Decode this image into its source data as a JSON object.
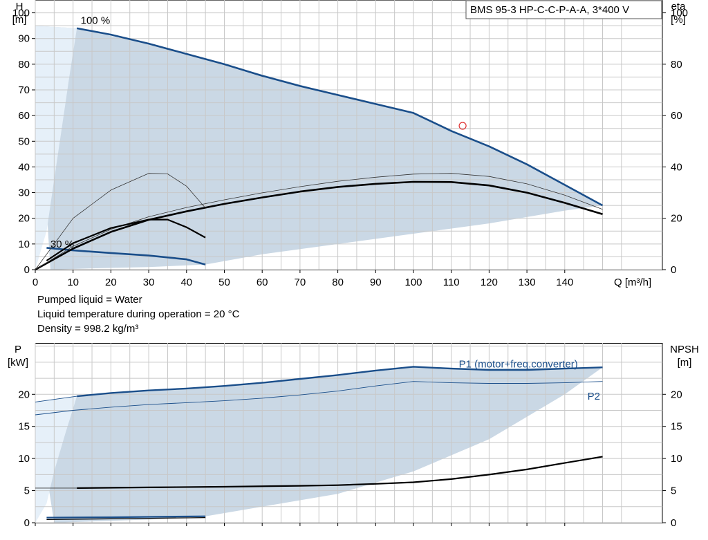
{
  "header": {
    "pump_model": "BMS 95-3 HP-C-C-P-A-A, 3*400 V"
  },
  "info": {
    "line1": "Pumped liquid = Water",
    "line2": "Liquid temperature during operation = 20 °C",
    "line3": "Density = 998.2 kg/m³"
  },
  "colors": {
    "blue": "#1a4e8a",
    "dark": "#000000",
    "area": "#cad8e5",
    "area_light": "#e6f0f9",
    "grid": "#c8c8c8",
    "marker": "#e03030"
  },
  "chart_data": [
    {
      "type": "line",
      "xlabel": "Q [m³/h]",
      "ylabel": "H\n[m]",
      "y2label": "eta\n[%]",
      "xlim": [
        0,
        150
      ],
      "ylim": [
        0,
        105
      ],
      "y2lim": [
        0,
        105
      ],
      "x_ticks": [
        0,
        10,
        20,
        30,
        40,
        50,
        60,
        70,
        80,
        90,
        100,
        110,
        120,
        130,
        140
      ],
      "y_ticks": [
        0,
        10,
        20,
        30,
        40,
        50,
        60,
        70,
        80,
        90,
        100
      ],
      "y2_ticks": [
        0,
        20,
        40,
        60,
        80,
        100
      ],
      "grid": true,
      "operating_envelope": [
        [
          0,
          95
        ],
        [
          11,
          94
        ],
        [
          20,
          91
        ],
        [
          30,
          88
        ],
        [
          45,
          82
        ],
        [
          60,
          76
        ],
        [
          70,
          72
        ],
        [
          80,
          68
        ],
        [
          90,
          64.5
        ],
        [
          100,
          61
        ],
        [
          110,
          54
        ],
        [
          120,
          48
        ],
        [
          130,
          41
        ],
        [
          140,
          33
        ],
        [
          150,
          25
        ],
        [
          140,
          23
        ],
        [
          120,
          18
        ],
        [
          100,
          14
        ],
        [
          80,
          10
        ],
        [
          60,
          6
        ],
        [
          45,
          2
        ],
        [
          30,
          1
        ],
        [
          15,
          0.5
        ],
        [
          4,
          0
        ]
      ],
      "min_speed_envelope": [
        [
          0,
          95
        ],
        [
          11,
          94
        ],
        [
          9,
          75
        ],
        [
          7,
          55
        ],
        [
          5,
          35
        ],
        [
          3,
          15
        ],
        [
          0,
          0
        ]
      ],
      "series": [
        {
          "name": "100 %",
          "label_at": [
            12,
            97
          ],
          "kind": "head",
          "points": [
            [
              11,
              94
            ],
            [
              20,
              91.5
            ],
            [
              30,
              88
            ],
            [
              40,
              84
            ],
            [
              50,
              80
            ],
            [
              60,
              75.5
            ],
            [
              70,
              71.5
            ],
            [
              80,
              68
            ],
            [
              90,
              64.5
            ],
            [
              100,
              61
            ],
            [
              110,
              54
            ],
            [
              120,
              48
            ],
            [
              130,
              41
            ],
            [
              140,
              33
            ],
            [
              150,
              25
            ]
          ]
        },
        {
          "name": "30 %",
          "label_at": [
            4,
            10
          ],
          "kind": "head",
          "points": [
            [
              3,
              8.5
            ],
            [
              10,
              7.5
            ],
            [
              20,
              6.5
            ],
            [
              30,
              5.5
            ],
            [
              40,
              4
            ],
            [
              45,
              2
            ]
          ]
        },
        {
          "kind": "eta_full",
          "points": [
            [
              0,
              0
            ],
            [
              10,
              8.2
            ],
            [
              20,
              14.7
            ],
            [
              30,
              19.4
            ],
            [
              40,
              22.7
            ],
            [
              50,
              25.6
            ],
            [
              60,
              28.1
            ],
            [
              70,
              30.4
            ],
            [
              80,
              32.2
            ],
            [
              90,
              33.4
            ],
            [
              100,
              34.2
            ],
            [
              110,
              34.1
            ],
            [
              120,
              32.8
            ],
            [
              130,
              30
            ],
            [
              140,
              26
            ],
            [
              150,
              21.6
            ]
          ]
        },
        {
          "kind": "eta_thin",
          "points": [
            [
              0,
              0
            ],
            [
              10,
              9.1
            ],
            [
              20,
              15.7
            ],
            [
              30,
              20.6
            ],
            [
              40,
              24.2
            ],
            [
              50,
              27.2
            ],
            [
              60,
              29.9
            ],
            [
              70,
              32.3
            ],
            [
              80,
              34.4
            ],
            [
              90,
              36
            ],
            [
              100,
              37.2
            ],
            [
              110,
              37.5
            ],
            [
              120,
              36.3
            ],
            [
              130,
              33.4
            ],
            [
              140,
              29
            ],
            [
              150,
              23.5
            ]
          ]
        },
        {
          "kind": "eta_min",
          "points": [
            [
              3,
              3.5
            ],
            [
              10,
              10.3
            ],
            [
              20,
              16.2
            ],
            [
              30,
              19.5
            ],
            [
              35,
              19.5
            ],
            [
              40,
              16.5
            ],
            [
              45,
              12.5
            ]
          ]
        },
        {
          "kind": "eta_min_thin",
          "points": [
            [
              0,
              0
            ],
            [
              10,
              20
            ],
            [
              20,
              31
            ],
            [
              30,
              37.5
            ],
            [
              35,
              37.3
            ],
            [
              40,
              32.5
            ],
            [
              45,
              24
            ]
          ]
        }
      ],
      "marker": {
        "x": 113,
        "y": 56
      }
    },
    {
      "type": "line",
      "ylabel": "P\n[kW]",
      "y2label": "NPSH\n[m]",
      "xlim": [
        0,
        150
      ],
      "ylim": [
        0,
        28
      ],
      "y2lim": [
        0,
        28
      ],
      "x_ticks": [
        0,
        10,
        20,
        30,
        40,
        50,
        60,
        70,
        80,
        90,
        100,
        110,
        120,
        130,
        140
      ],
      "y_ticks": [
        0,
        5,
        10,
        15,
        20
      ],
      "y2_ticks": [
        0,
        5,
        10,
        15,
        20
      ],
      "grid": true,
      "operating_envelope": [
        [
          0,
          18.8
        ],
        [
          11,
          19.7
        ],
        [
          30,
          20.5
        ],
        [
          50,
          21.2
        ],
        [
          70,
          22.3
        ],
        [
          90,
          23.6
        ],
        [
          100,
          24.3
        ],
        [
          120,
          24
        ],
        [
          150,
          24.2
        ],
        [
          140,
          20
        ],
        [
          120,
          13
        ],
        [
          100,
          8
        ],
        [
          80,
          4.5
        ],
        [
          60,
          2.5
        ],
        [
          45,
          1
        ],
        [
          30,
          0.5
        ],
        [
          5,
          0
        ]
      ],
      "min_speed_envelope": [
        [
          0,
          18.8
        ],
        [
          11,
          19.7
        ],
        [
          8,
          14
        ],
        [
          5,
          8
        ],
        [
          3,
          3
        ],
        [
          0,
          0
        ]
      ],
      "series": [
        {
          "name": "P1 (motor+freq.converter)",
          "kind": "p1",
          "points": [
            [
              11,
              19.7
            ],
            [
              20,
              20.2
            ],
            [
              30,
              20.6
            ],
            [
              40,
              20.9
            ],
            [
              50,
              21.3
            ],
            [
              60,
              21.8
            ],
            [
              70,
              22.4
            ],
            [
              80,
              23
            ],
            [
              90,
              23.7
            ],
            [
              100,
              24.3
            ],
            [
              110,
              24
            ],
            [
              120,
              23.8
            ],
            [
              130,
              23.8
            ],
            [
              140,
              24
            ],
            [
              150,
              24.2
            ]
          ]
        },
        {
          "kind": "p1_thin",
          "points": [
            [
              0,
              18.8
            ],
            [
              11,
              19.7
            ]
          ]
        },
        {
          "name": "P2",
          "kind": "p2",
          "points": [
            [
              0,
              16.8
            ],
            [
              10,
              17.5
            ],
            [
              20,
              18
            ],
            [
              30,
              18.4
            ],
            [
              40,
              18.7
            ],
            [
              50,
              19
            ],
            [
              60,
              19.4
            ],
            [
              70,
              19.9
            ],
            [
              80,
              20.5
            ],
            [
              90,
              21.3
            ],
            [
              100,
              22
            ],
            [
              110,
              21.8
            ],
            [
              120,
              21.7
            ],
            [
              130,
              21.7
            ],
            [
              140,
              21.8
            ],
            [
              150,
              22
            ]
          ]
        },
        {
          "kind": "npsh",
          "points": [
            [
              11,
              5.4
            ],
            [
              30,
              5.5
            ],
            [
              50,
              5.6
            ],
            [
              70,
              5.75
            ],
            [
              80,
              5.85
            ],
            [
              90,
              6.05
            ],
            [
              100,
              6.3
            ],
            [
              110,
              6.8
            ],
            [
              120,
              7.5
            ],
            [
              130,
              8.3
            ],
            [
              140,
              9.3
            ],
            [
              150,
              10.3
            ]
          ]
        },
        {
          "kind": "npsh_thin",
          "points": [
            [
              0,
              5.4
            ],
            [
              11,
              5.4
            ]
          ]
        },
        {
          "kind": "p_min",
          "points": [
            [
              3,
              0.8
            ],
            [
              20,
              0.85
            ],
            [
              45,
              1
            ]
          ]
        },
        {
          "kind": "p_min2",
          "points": [
            [
              3,
              0.5
            ],
            [
              20,
              0.6
            ],
            [
              45,
              0.8
            ]
          ]
        }
      ],
      "labels": [
        {
          "text": "P1 (motor+freq.converter)",
          "at": [
            112,
            24.7
          ]
        },
        {
          "text": "P2",
          "at": [
            146,
            19.7
          ]
        }
      ]
    }
  ]
}
